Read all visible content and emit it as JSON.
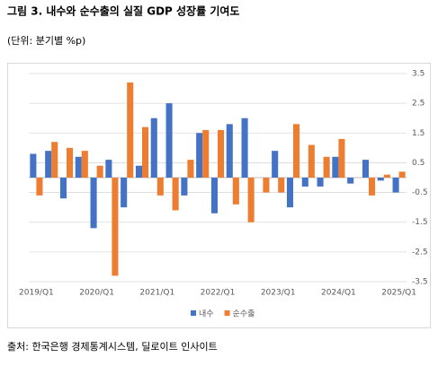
{
  "chart_data": {
    "type": "bar",
    "title": "그림 3. 내수와 순수출의 실질 GDP 성장률 기여도",
    "subtitle": "(단위: 분기별 %p)",
    "source": "출처: 한국은행 경제통계시스템, 딜로이트 인사이트",
    "categories": [
      "2019/Q1",
      null,
      null,
      null,
      "2020/Q1",
      null,
      null,
      null,
      "2021/Q1",
      null,
      null,
      null,
      "2022/Q1",
      null,
      null,
      null,
      "2023/Q1",
      null,
      null,
      null,
      "2024/Q1",
      null,
      null,
      null,
      "2025/Q1"
    ],
    "series": [
      {
        "name": "내수",
        "color": "#4472c4",
        "values": [
          0.8,
          0.9,
          -0.7,
          0.7,
          -1.7,
          0.6,
          -1.0,
          0.4,
          2.0,
          2.5,
          -0.6,
          1.5,
          -1.2,
          1.8,
          2.0,
          0,
          0.9,
          -1.0,
          -0.3,
          -0.3,
          0.7,
          -0.2,
          0.6,
          -0.1,
          -0.5
        ]
      },
      {
        "name": "순수출",
        "color": "#ed7d31",
        "values": [
          -0.6,
          1.2,
          1.0,
          0.9,
          0.4,
          -3.3,
          3.2,
          1.7,
          -0.6,
          -1.1,
          0.6,
          1.6,
          1.6,
          -0.9,
          -1.5,
          -0.5,
          -0.5,
          1.8,
          1.1,
          0.7,
          1.3,
          0,
          -0.6,
          0.1,
          0.2
        ]
      }
    ],
    "ylim": [
      -3.5,
      3.5
    ],
    "yticks": [
      3.5,
      2.5,
      1.5,
      0.5,
      -0.5,
      -1.5,
      -2.5,
      -3.5
    ],
    "grid": true,
    "legend": "bottom"
  }
}
